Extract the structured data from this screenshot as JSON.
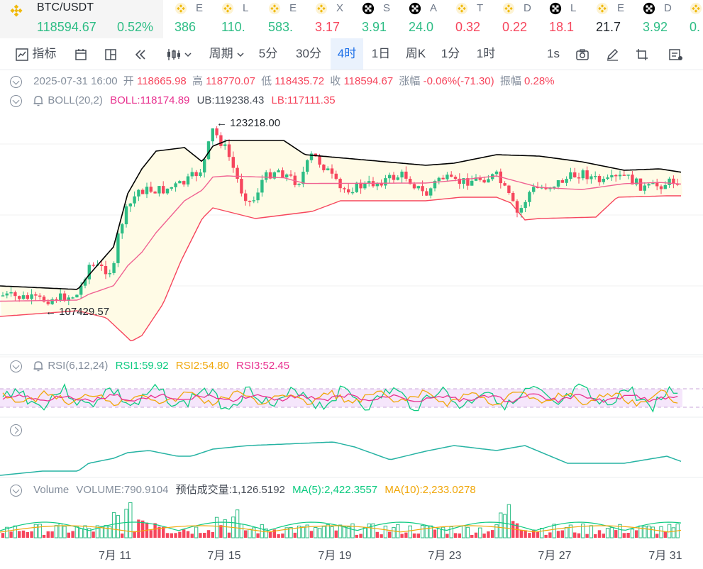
{
  "pair": {
    "name": "BTC/USDT",
    "price": "118594.67",
    "change": "0.52%"
  },
  "tickers": [
    {
      "icon": "binance-icon",
      "name": "E",
      "value": "386",
      "color": "#2ebd85"
    },
    {
      "icon": "binance-icon",
      "name": "L",
      "value": "110.",
      "color": "#2ebd85"
    },
    {
      "icon": "binance-icon",
      "name": "E",
      "value": "583.",
      "color": "#2ebd85"
    },
    {
      "icon": "binance-icon",
      "name": "X",
      "value": "3.17",
      "color": "#f6465d"
    },
    {
      "icon": "ox-icon",
      "name": "S",
      "value": "3.91",
      "color": "#2ebd85"
    },
    {
      "icon": "ox-icon",
      "name": "A",
      "value": "24.0",
      "color": "#2ebd85"
    },
    {
      "icon": "binance-icon",
      "name": "T",
      "value": "0.32",
      "color": "#f6465d"
    },
    {
      "icon": "binance-icon",
      "name": "D",
      "value": "0.22",
      "color": "#f6465d"
    },
    {
      "icon": "ox-icon",
      "name": "L",
      "value": "18.1",
      "color": "#f6465d"
    },
    {
      "icon": "binance-icon",
      "name": "E",
      "value": "21.7",
      "color": "#1e2329"
    },
    {
      "icon": "ox-icon",
      "name": "D",
      "value": "3.92",
      "color": "#2ebd85"
    },
    {
      "icon": "binance-icon",
      "name": "",
      "value": "0.",
      "color": "#2ebd85"
    }
  ],
  "toolbar": {
    "indicators": "指标",
    "period_label": "周期",
    "intervals": [
      "5分",
      "30分",
      "4时",
      "1日",
      "周K",
      "1分",
      "1时"
    ],
    "active_interval": "4时",
    "replay_speed": "1s"
  },
  "candle_info": {
    "datetime": "2025-07-31 16:00",
    "open_label": "开",
    "open": "118665.98",
    "high_label": "高",
    "high": "118770.07",
    "low_label": "低",
    "low": "118435.72",
    "close_label": "收",
    "close": "118594.67",
    "change_label": "涨幅",
    "change": "-0.06%(-71.30)",
    "amplitude_label": "振幅",
    "amplitude": "0.28%"
  },
  "boll": {
    "name": "BOLL(20,2)",
    "mid": "BOLL:118174.89",
    "ub": "UB:119238.43",
    "lb": "LB:117111.35"
  },
  "price_annotations": {
    "high": "123218.00",
    "low": "107429.57"
  },
  "rsi": {
    "name": "RSI(6,12,24)",
    "rsi1": "RSI1:59.92",
    "rsi2": "RSI2:54.80",
    "rsi3": "RSI3:52.45"
  },
  "volume": {
    "name": "Volume",
    "volume": "VOLUME:790.9104",
    "estimated": "预估成交量:1,126.5192",
    "ma5": "MA(5):2,422.3557",
    "ma10": "MA(10):2,233.0278"
  },
  "x_axis": [
    "7月 11",
    "7月 15",
    "7月 19",
    "7月 23",
    "7月 27",
    "7月 31"
  ],
  "colors": {
    "up": "#2ebd85",
    "down": "#f6465d",
    "boll_mid": "#f06292",
    "boll_ub": "#000000",
    "boll_lb": "#f6465d",
    "band_fill": "#fffbe6",
    "accent": "#1c6fe8"
  }
}
